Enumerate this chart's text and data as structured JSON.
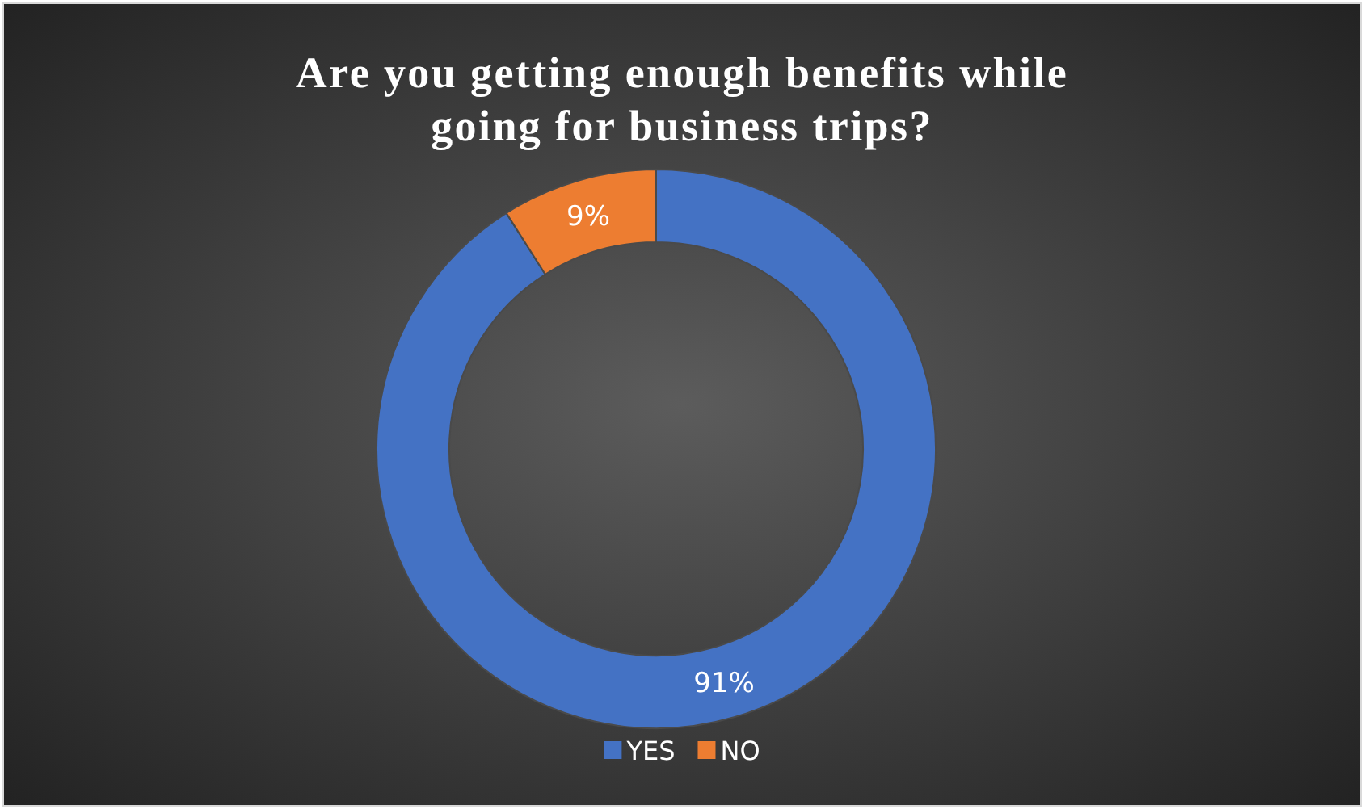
{
  "chart_data": {
    "type": "donut",
    "title": "Are you getting enough benefits while going for business trips?",
    "categories": [
      "YES",
      "NO"
    ],
    "values": [
      91,
      9
    ],
    "colors": [
      "#4472c4",
      "#ed7d31"
    ],
    "value_labels": [
      "91%",
      "9%"
    ],
    "legend": "bottom"
  }
}
